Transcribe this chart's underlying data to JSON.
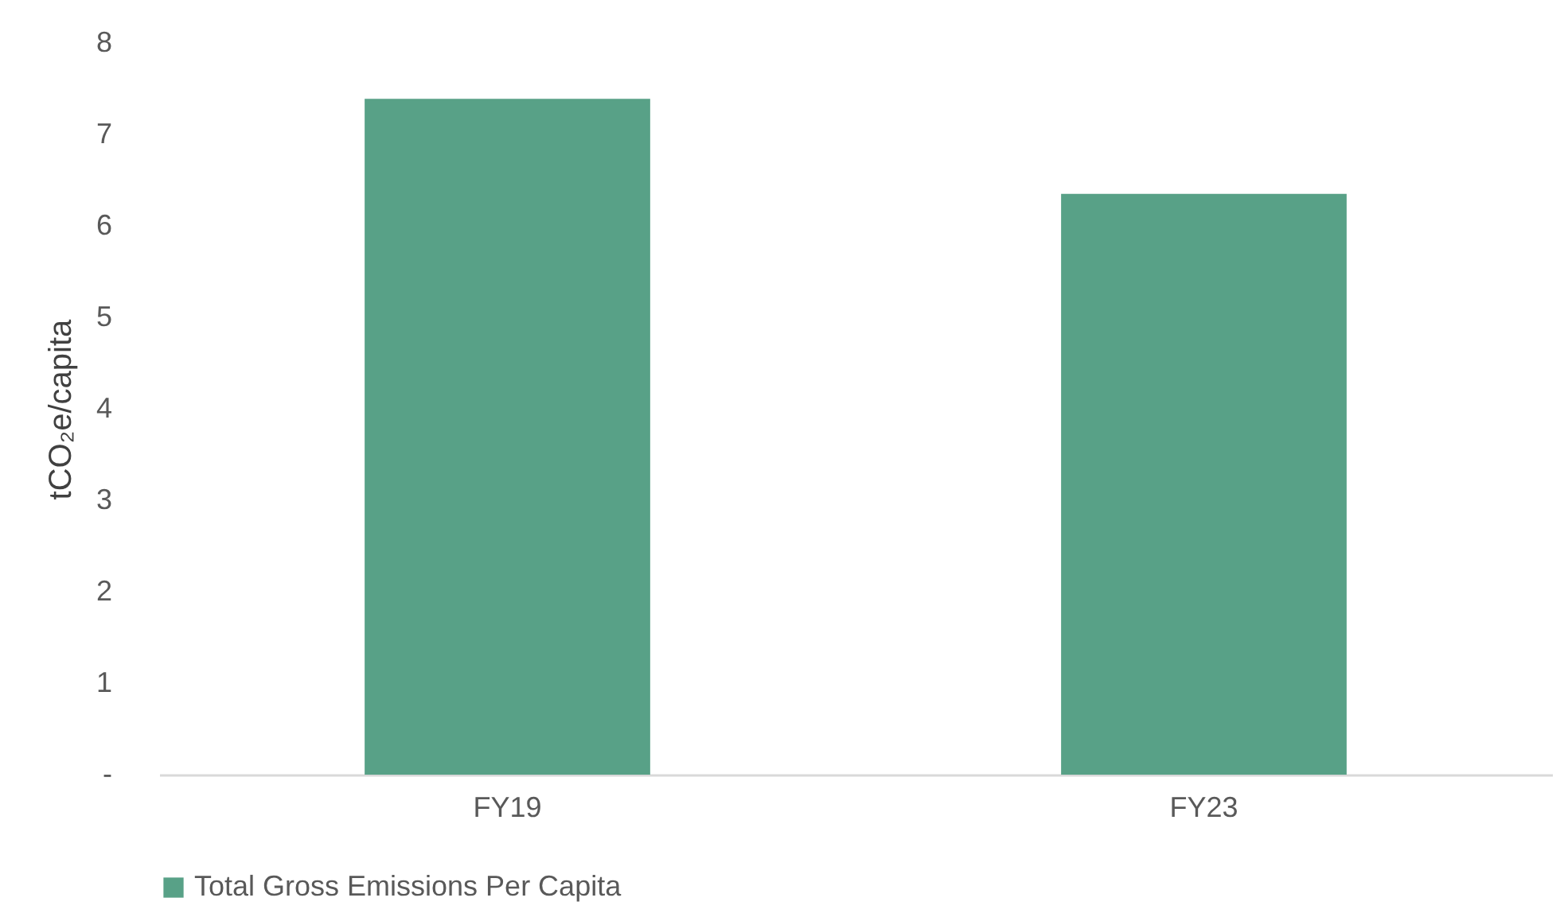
{
  "chart_data": {
    "type": "bar",
    "ylabel": "tCO₂e/capita",
    "categories": [
      "FY19",
      "FY23"
    ],
    "series": [
      {
        "name": "Total Gross Emissions Per Capita",
        "color": "#58a187",
        "values": [
          7.39,
          6.35
        ]
      }
    ],
    "ylim": [
      0,
      8
    ],
    "yticks": [
      {
        "value": 0,
        "label": "-"
      },
      1,
      2,
      3,
      4,
      5,
      6,
      7,
      8
    ],
    "grid": false,
    "legend": "bottom"
  }
}
